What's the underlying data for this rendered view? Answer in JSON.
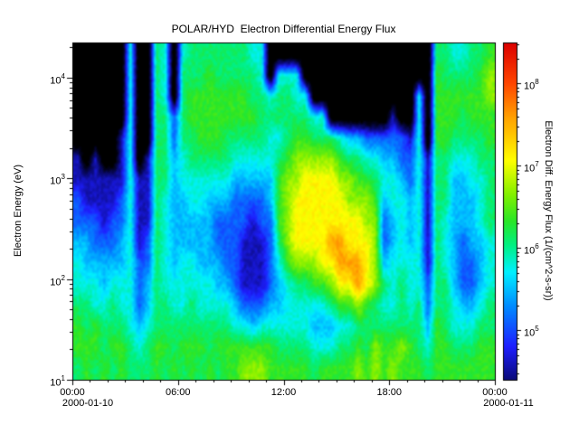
{
  "title": "POLAR/HYD  Electron Differential Energy Flux",
  "chart_data": {
    "type": "heatmap",
    "title": "POLAR/HYD  Electron Differential Energy Flux",
    "x_axis": {
      "ticks": [
        "00:00",
        "06:00",
        "12:00",
        "18:00",
        "00:00"
      ],
      "tick_hours": [
        0,
        6,
        12,
        18,
        24
      ],
      "minor_step_hours": 1,
      "range_hours": [
        0,
        24
      ],
      "start_date": "2000-01-10",
      "end_date": "2000-01-11"
    },
    "y_axis": {
      "label": "Electron Energy (eV)",
      "scale": "log",
      "tick_exponents": [
        1,
        2,
        3,
        4
      ],
      "range_log10": [
        1.0,
        4.35
      ]
    },
    "colorbar": {
      "label": "Electron Diff. Energy Flux (1/(cm^2-s-sr))",
      "scale": "log",
      "tick_exponents": [
        5,
        6,
        7,
        8
      ],
      "range_log10": [
        4.4,
        8.5
      ]
    },
    "flux_code_log10": {
      "0": null,
      "1": 4.6,
      "2": 5.1,
      "3": 5.5,
      "4": 5.8,
      "5": 6.1,
      "6": 6.35,
      "7": 6.7,
      "8": 7.1,
      "9": 7.6
    },
    "grid_info": {
      "time_step_hours": 0.5,
      "energy_rows": {
        "count": 16,
        "min_log10": 1.0,
        "max_log10": 4.3,
        "order": "bottom-to-top"
      },
      "note": "columns[i] = 30-min time bin starting at i*0.5 h on 2000-01-10; each char is a flux code, lowest energy first; 0 = below scale (black)"
    },
    "columns": [
      "5665443221100000",
      "6655433211000000",
      "5664432211100000",
      "6554332111000000",
      "5655432211000000",
      "6654433221110000",
      "5544444444444444",
      "5432221111000000",
      "5543322111100000",
      "6655555555555555",
      "5655444445555444",
      "6554433333322000",
      "5654443334455554",
      "6655443344556655",
      "5654433344566655",
      "6554433334566665",
      "5654332234566655",
      "6654322234556655",
      "6643222223456655",
      "7642111223456655",
      "7632111123456554",
      "7642111223455544",
      "6643222233445400",
      "6543345666545540",
      "6544467777655540",
      "6544578887765440",
      "6544578888765400",
      "5434678888754000",
      "6434688888754000",
      "6435789888750000",
      "6546899887640000",
      "6546898877530000",
      "7657998876530000",
      "6556888776420000",
      "7755777765420000",
      "6654532234320000",
      "7654443344321000",
      "6755544443220000",
      "6654443332210000",
      "6555444444444400",
      "5432211111100000",
      "6665555555566665",
      "6655544455566655",
      "6544333333456654",
      "6543222333455654",
      "6543223334456655",
      "6654333444556665",
      "6655444555566776"
    ]
  },
  "colors": {
    "background": "#ffffff",
    "axis": "#000000",
    "below_scale": "#000000",
    "colormap_stops": [
      [
        0.0,
        [
          10,
          10,
          120
        ]
      ],
      [
        0.1,
        [
          30,
          30,
          255
        ]
      ],
      [
        0.22,
        [
          0,
          140,
          255
        ]
      ],
      [
        0.32,
        [
          0,
          240,
          255
        ]
      ],
      [
        0.4,
        [
          0,
          240,
          130
        ]
      ],
      [
        0.47,
        [
          40,
          230,
          40
        ]
      ],
      [
        0.55,
        [
          130,
          240,
          0
        ]
      ],
      [
        0.65,
        [
          255,
          255,
          0
        ]
      ],
      [
        0.78,
        [
          255,
          160,
          0
        ]
      ],
      [
        0.88,
        [
          255,
          70,
          0
        ]
      ],
      [
        1.0,
        [
          220,
          0,
          0
        ]
      ]
    ]
  }
}
